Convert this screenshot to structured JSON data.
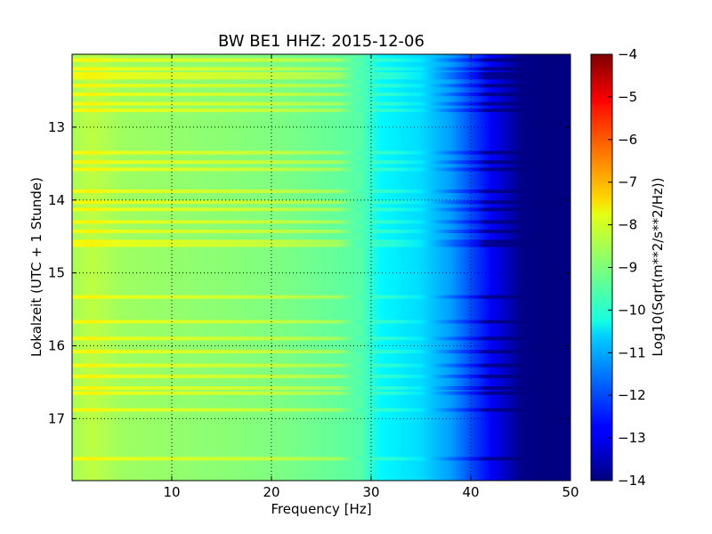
{
  "chart_data": {
    "type": "heatmap",
    "title": "BW BE1 HHZ: 2015-12-06",
    "xlabel": "Frequency [Hz]",
    "ylabel": "Lokalzeit (UTC + 1 Stunde)",
    "xlim": [
      0,
      50
    ],
    "ylim": [
      17.85,
      12.0
    ],
    "x_ticks": [
      "10",
      "20",
      "30",
      "40",
      "50"
    ],
    "y_ticks": [
      "13",
      "14",
      "15",
      "16",
      "17"
    ],
    "grid": true,
    "colorbar": {
      "label": "Log10(Sqrt(m**2/s**2/Hz))",
      "range": [
        -14,
        -4
      ],
      "ticks": [
        "−4",
        "−5",
        "−6",
        "−7",
        "−8",
        "−9",
        "−10",
        "−11",
        "−12",
        "−13",
        "−14"
      ],
      "colormap": "jet"
    },
    "spectral_profile": {
      "frequency": [
        0,
        2,
        5,
        10,
        15,
        20,
        25,
        29,
        31,
        35,
        38,
        40,
        42,
        44,
        45,
        47,
        50
      ],
      "level": [
        -8.6,
        -8.4,
        -8.7,
        -8.8,
        -8.9,
        -9.0,
        -9.2,
        -9.4,
        -10.3,
        -10.6,
        -11.2,
        -12.0,
        -12.8,
        -13.5,
        -13.9,
        -14.0,
        -14.0
      ]
    },
    "bright_bands_hours": [
      12.08,
      12.2,
      12.27,
      12.32,
      12.43,
      12.55,
      12.68,
      12.77,
      13.35,
      13.48,
      13.58,
      13.88,
      14.03,
      14.13,
      14.3,
      14.43,
      14.57,
      14.62,
      15.33,
      15.67,
      15.9,
      16.08,
      16.27,
      16.42,
      16.58,
      16.65,
      16.88,
      17.55
    ]
  }
}
